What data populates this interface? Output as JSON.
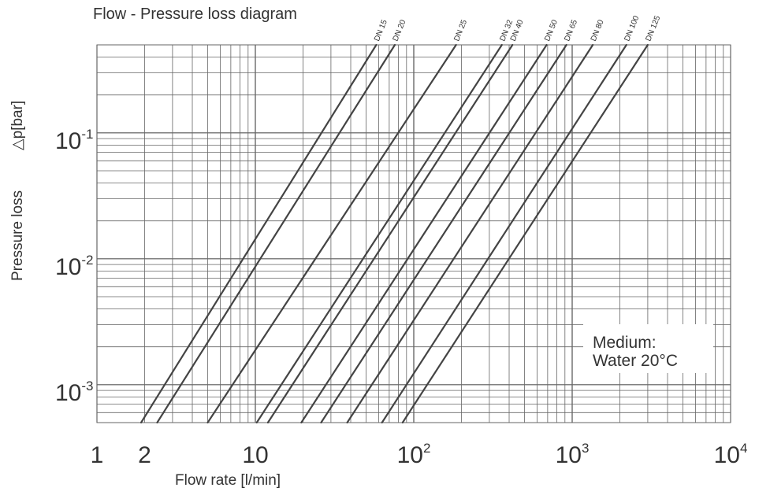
{
  "chart_data": {
    "type": "line",
    "title": "Flow - Pressure loss diagram",
    "xlabel": "Flow rate [l/min]",
    "ylabel_text": "Pressure loss",
    "ylabel_symbol": "△p[bar]",
    "x_scale": "log",
    "y_scale": "log",
    "xlim": [
      1,
      10000
    ],
    "ylim": [
      0.0005,
      0.5
    ],
    "grid": true,
    "x_ticks": [
      {
        "value": 1,
        "base": "1",
        "exp": ""
      },
      {
        "value": 2,
        "base": "2",
        "exp": ""
      },
      {
        "value": 10,
        "base": "10",
        "exp": ""
      },
      {
        "value": 100,
        "base": "10",
        "exp": "2"
      },
      {
        "value": 1000,
        "base": "10",
        "exp": "3"
      },
      {
        "value": 10000,
        "base": "10",
        "exp": "4"
      }
    ],
    "y_ticks": [
      {
        "value": 0.1,
        "base": "10",
        "exp": "-1"
      },
      {
        "value": 0.01,
        "base": "10",
        "exp": "-2"
      },
      {
        "value": 0.001,
        "base": "10",
        "exp": "-3"
      }
    ],
    "series": [
      {
        "name": "DN 15",
        "x": [
          1.9,
          58
        ],
        "y": [
          0.0005,
          0.5
        ]
      },
      {
        "name": "DN 20",
        "x": [
          2.4,
          76
        ],
        "y": [
          0.0005,
          0.5
        ]
      },
      {
        "name": "DN 25",
        "x": [
          5.0,
          185
        ],
        "y": [
          0.0005,
          0.5
        ]
      },
      {
        "name": "DN 32",
        "x": [
          10.2,
          360
        ],
        "y": [
          0.0005,
          0.5
        ]
      },
      {
        "name": "DN 40",
        "x": [
          12.0,
          420
        ],
        "y": [
          0.0005,
          0.5
        ]
      },
      {
        "name": "DN 50",
        "x": [
          19.5,
          690
        ],
        "y": [
          0.0005,
          0.5
        ]
      },
      {
        "name": "DN 65",
        "x": [
          26.0,
          920
        ],
        "y": [
          0.0005,
          0.5
        ]
      },
      {
        "name": "DN 80",
        "x": [
          38.0,
          1350
        ],
        "y": [
          0.0005,
          0.5
        ]
      },
      {
        "name": "DN 100",
        "x": [
          63.0,
          2200
        ],
        "y": [
          0.0005,
          0.5
        ]
      },
      {
        "name": "DN 125",
        "x": [
          85.0,
          3000
        ],
        "y": [
          0.0005,
          0.5
        ]
      }
    ],
    "annotation": {
      "line1": "Medium:",
      "line2": "Water 20°C"
    }
  }
}
